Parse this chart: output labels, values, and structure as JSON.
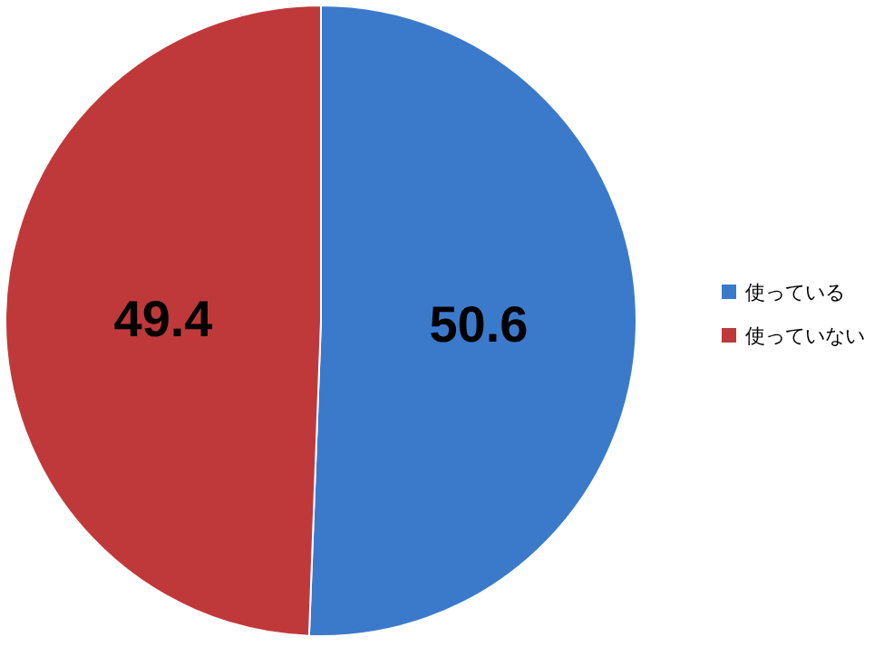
{
  "chart_data": {
    "type": "pie",
    "categories": [
      "使っている",
      "使っていない"
    ],
    "values": [
      50.6,
      49.4
    ],
    "colors": [
      "#3b7acb",
      "#c0393a"
    ],
    "data_labels": true,
    "legend": "right"
  }
}
